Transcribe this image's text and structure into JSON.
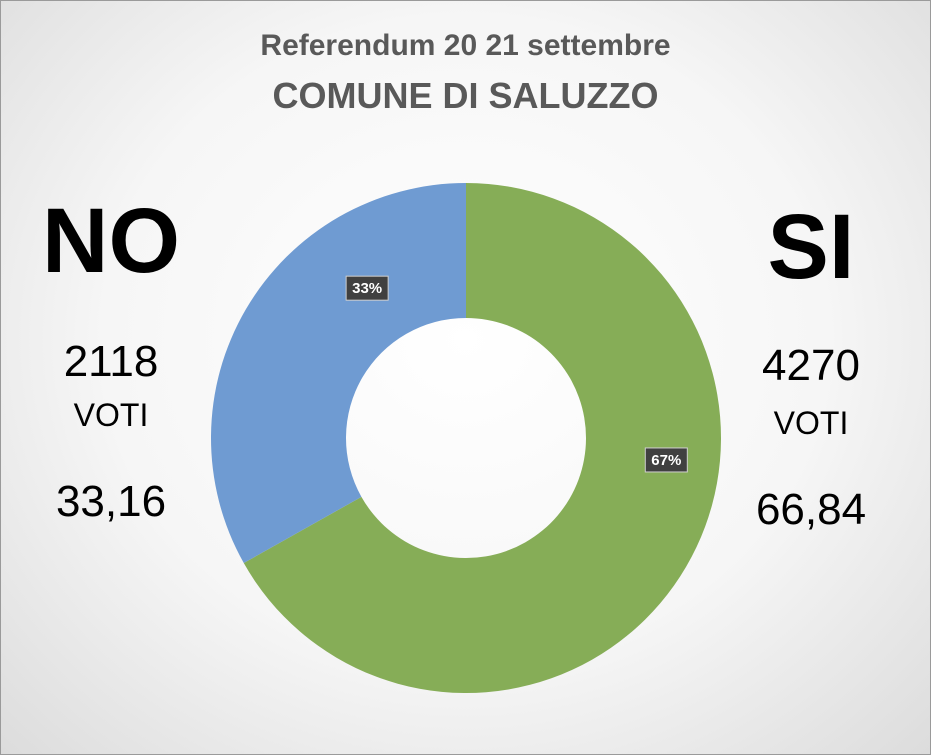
{
  "title": "Referendum 20 21 settembre",
  "subtitle": "COMUNE DI SALUZZO",
  "no": {
    "label": "NO",
    "votes": "2118",
    "votes_unit": "VOTI",
    "percent": "33,16"
  },
  "si": {
    "label": "SI",
    "votes": "4270",
    "votes_unit": "VOTI",
    "percent": "66,84"
  },
  "chart_data": {
    "type": "pie",
    "style": "donut",
    "categories": [
      "SI",
      "NO"
    ],
    "values": [
      4270,
      2118
    ],
    "data_labels": [
      "67%",
      "33%"
    ],
    "colors": [
      "#86ad57",
      "#6f9bd2"
    ],
    "title": "Referendum 20 21 settembre",
    "subtitle": "COMUNE DI SALUZZO",
    "legend": "none"
  }
}
